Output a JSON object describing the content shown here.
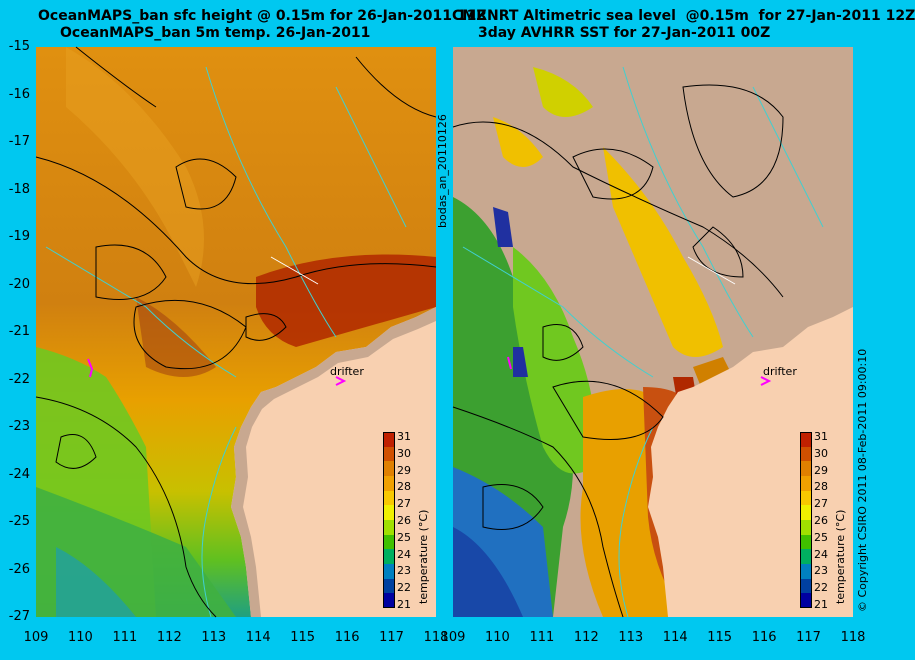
{
  "left_panel": {
    "title_line1": "OceanMAPS_ban sfc height @ 0.15m for 26-Jan-2011 11Z",
    "title_line2": "OceanMAPS_ban 5m temp. 26-Jan-2011"
  },
  "right_panel": {
    "title_line1": "CMRNRT Altimetric sea level  @0.15m  for 27-Jan-2011 12Z",
    "title_line2": "3day AVHRR SST for 27-Jan-2011 00Z"
  },
  "y_axis_labels": [
    "-15",
    "-16",
    "-17",
    "-18",
    "-19",
    "-20",
    "-21",
    "-22",
    "-23",
    "-24",
    "-25",
    "-26",
    "-27"
  ],
  "x_axis_labels": [
    "109",
    "110",
    "111",
    "112",
    "113",
    "114",
    "115",
    "116",
    "117",
    "118"
  ],
  "middle_vertical_label": "bodas_an_20110126",
  "right_vertical_label": "© Copyright CSIRO 2011   08-Feb-2011 09:00:10",
  "colorbar": {
    "title": "temperature (°C)",
    "labels": [
      "31",
      "30",
      "29",
      "28",
      "27",
      "26",
      "25",
      "24",
      "23",
      "22",
      "21"
    ],
    "colors": [
      "#c02000",
      "#d05000",
      "#e08000",
      "#f0a000",
      "#f8c800",
      "#f0f000",
      "#a0e000",
      "#40c000",
      "#00b060",
      "#0080c0",
      "#0040a0",
      "#0000a0"
    ]
  },
  "drifter_label": "drifter",
  "colors": {
    "background": "#00c8f0",
    "land": "#f8d0b0",
    "coast_shadow": "#c8a890",
    "contour": "#000000",
    "bathymetry": "#40d0d0",
    "drifter": "#ff00ff"
  }
}
